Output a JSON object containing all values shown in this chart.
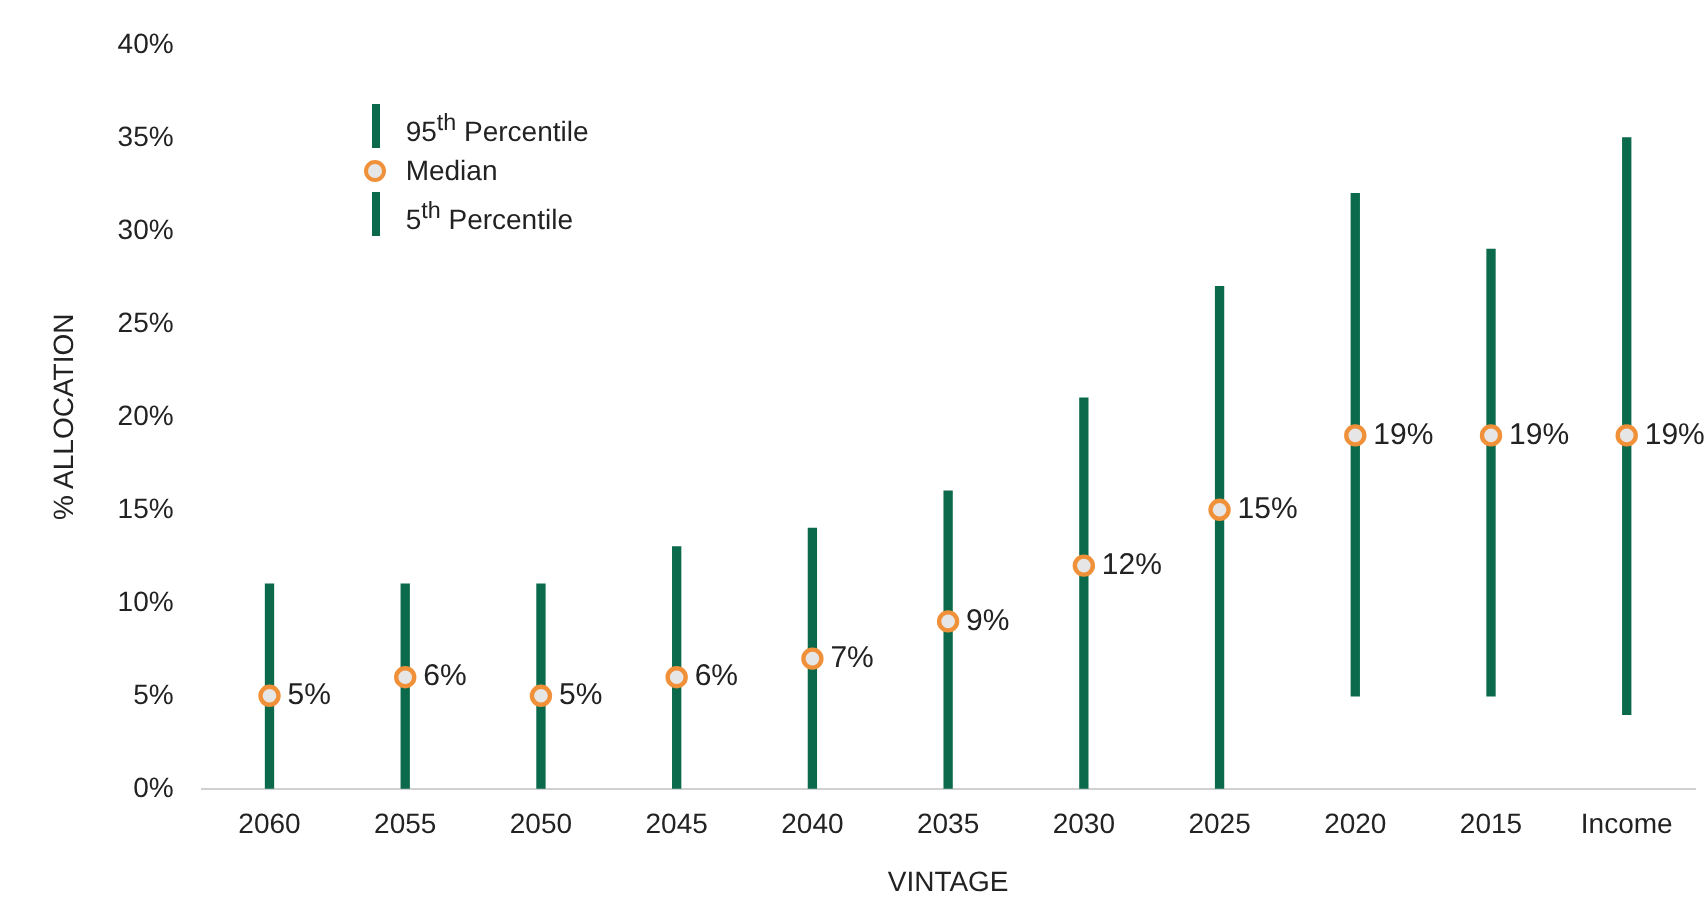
{
  "chart_data": {
    "type": "bar",
    "xlabel": "VINTAGE",
    "ylabel": "% ALLOCATION",
    "categories": [
      "2060",
      "2055",
      "2050",
      "2045",
      "2040",
      "2035",
      "2030",
      "2025",
      "2020",
      "2015",
      "Income"
    ],
    "series": [
      {
        "name": "95$^{th}$ Percentile",
        "color": "#0b6a4c",
        "base": [
          5,
          6,
          5,
          6,
          7,
          9,
          12,
          15,
          19,
          19,
          19
        ],
        "values": [
          6,
          5,
          6,
          7,
          7,
          7,
          9,
          12,
          13,
          10,
          16
        ]
      },
      {
        "name": "Median",
        "type": "scatter",
        "color": "#f0913a",
        "values": [
          5,
          6,
          5,
          6,
          7,
          9,
          12,
          15,
          19,
          19,
          19
        ],
        "value_labels": [
          "5%",
          "6%",
          "5%",
          "6%",
          "7%",
          "9%",
          "12%",
          "15%",
          "19%",
          "19%",
          "19%"
        ]
      },
      {
        "name": "5$^{th}$ Percentile",
        "color": "#0b6a4c",
        "base": [
          0,
          0,
          0,
          0,
          0,
          0,
          0,
          0,
          5,
          5,
          4
        ],
        "values": [
          5,
          6,
          5,
          6,
          7,
          9,
          12,
          15,
          14,
          14,
          15
        ]
      }
    ],
    "ylim": [
      0,
      40
    ],
    "yticks": [
      {
        "value": 0,
        "label": "0%"
      },
      {
        "value": 5,
        "label": "5%"
      },
      {
        "value": 10,
        "label": "10%"
      },
      {
        "value": 15,
        "label": "15%"
      },
      {
        "value": 20,
        "label": "20%"
      },
      {
        "value": 25,
        "label": "25%"
      },
      {
        "value": 30,
        "label": "30%"
      },
      {
        "value": 35,
        "label": "35%"
      },
      {
        "value": 40,
        "label": "40%"
      }
    ],
    "grid": false,
    "legend": "top left",
    "marker": "circle"
  }
}
